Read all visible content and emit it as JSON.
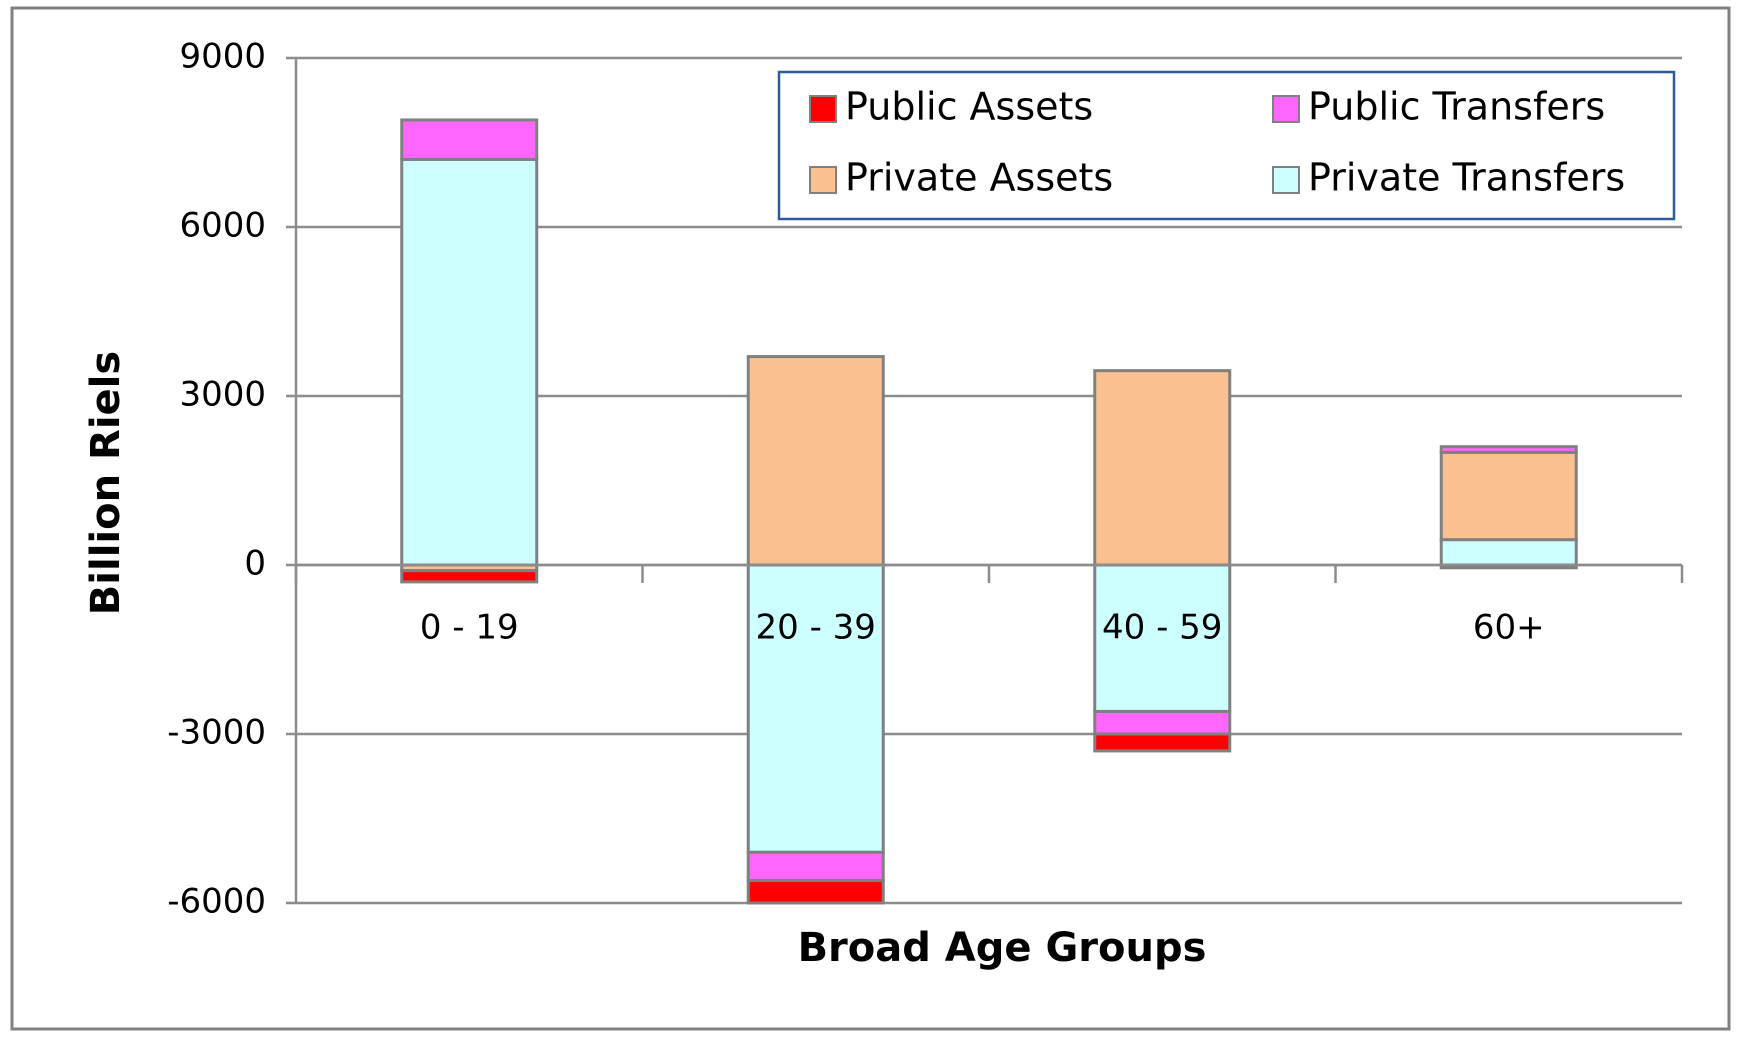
{
  "chart_data": {
    "type": "bar",
    "stacked": true,
    "x_label": "Broad Age Groups",
    "y_label": "Billion Riels",
    "categories": [
      "0 - 19",
      "20 - 39",
      "40 - 59",
      "60+"
    ],
    "series": [
      {
        "name": "Public Assets",
        "color": "#ff0000",
        "values": [
          -200,
          -400,
          -300,
          -50
        ]
      },
      {
        "name": "Public Transfers",
        "color": "#ff66ff",
        "values": [
          700,
          -500,
          -400,
          100
        ]
      },
      {
        "name": "Private Assets",
        "color": "#fac090",
        "values": [
          -100,
          3700,
          3450,
          1550
        ]
      },
      {
        "name": "Private Transfers",
        "color": "#ccffff",
        "values": [
          7200,
          -5100,
          -2600,
          450
        ]
      }
    ],
    "ylim": [
      -6000,
      9000
    ],
    "yticks": [
      -6000,
      -3000,
      0,
      3000,
      6000,
      9000
    ],
    "grid": true,
    "legend": "top-right"
  }
}
